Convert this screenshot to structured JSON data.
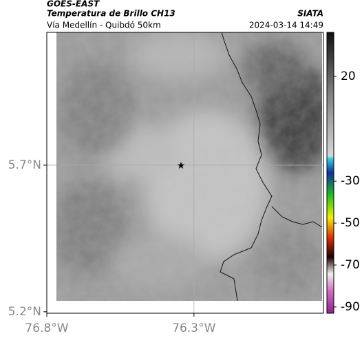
{
  "header": {
    "source": "GOES-EAST",
    "product": "Temperatura de Brillo CH13",
    "org": "SIATA",
    "region": "Vía Medellín - Quibdó 50km",
    "timestamp": "2024-03-14 14:49"
  },
  "map": {
    "xlim": [
      -76.8,
      -75.86
    ],
    "ylim": [
      5.195,
      6.153
    ],
    "xticks": [
      {
        "value": -76.8,
        "label": "76.8°W"
      },
      {
        "value": -76.3,
        "label": "76.3°W"
      }
    ],
    "yticks": [
      {
        "value": 5.7,
        "label": "5.7°N"
      },
      {
        "value": 5.2,
        "label": "5.2°N"
      }
    ],
    "grid": true
  },
  "colorbar": {
    "lim": [
      41,
      -93
    ],
    "ticks": [
      20,
      -30,
      -50,
      -70,
      -90
    ]
  }
}
